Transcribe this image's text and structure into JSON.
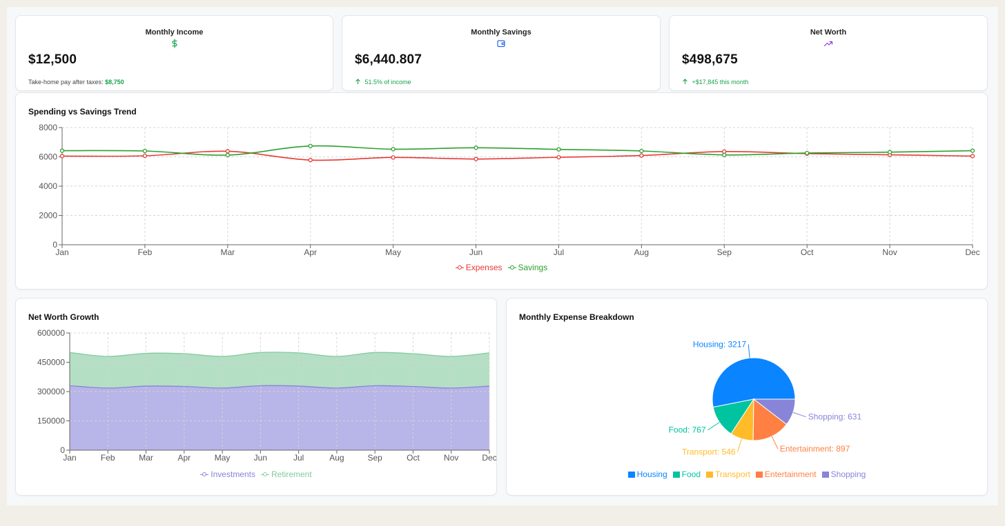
{
  "cards": [
    {
      "title": "Monthly Income",
      "icon": "dollar-icon",
      "value": "$12,500",
      "sub_text": "Take-home pay after taxes:",
      "sub_highlight": "$8,750",
      "color": "#16a34a"
    },
    {
      "title": "Monthly Savings",
      "icon": "wallet-icon",
      "value": "$6,440.807",
      "sub_text": "51.5% of income",
      "color": "#2563eb"
    },
    {
      "title": "Net Worth",
      "icon": "trending-up-icon",
      "value": "$498,675",
      "sub_text": "+$17,845 this month",
      "color": "#9333ea"
    }
  ],
  "chart_data": [
    {
      "type": "line",
      "title": "Spending vs Savings Trend",
      "categories": [
        "Jan",
        "Feb",
        "Mar",
        "Apr",
        "May",
        "Jun",
        "Jul",
        "Aug",
        "Sep",
        "Oct",
        "Nov",
        "Dec"
      ],
      "series": [
        {
          "name": "Expenses",
          "color": "#e53935",
          "values": [
            6050,
            6070,
            6380,
            5780,
            5960,
            5850,
            5970,
            6090,
            6360,
            6220,
            6140,
            6050
          ]
        },
        {
          "name": "Savings",
          "color": "#2ca02c",
          "values": [
            6420,
            6400,
            6120,
            6740,
            6520,
            6620,
            6510,
            6400,
            6130,
            6260,
            6320,
            6420
          ]
        }
      ],
      "yticks": [
        0,
        2000,
        4000,
        6000,
        8000
      ],
      "ylim": [
        0,
        8000
      ],
      "grid": true,
      "legend": "bottom"
    },
    {
      "type": "area",
      "title": "Net Worth Growth",
      "stacked": true,
      "categories": [
        "Jan",
        "Feb",
        "Mar",
        "Apr",
        "May",
        "Jun",
        "Jul",
        "Aug",
        "Sep",
        "Oct",
        "Nov",
        "Dec"
      ],
      "series": [
        {
          "name": "Investments",
          "color": "#8884d8",
          "values": [
            330000,
            318000,
            328000,
            326000,
            318000,
            330000,
            328000,
            318000,
            330000,
            326000,
            318000,
            328000
          ]
        },
        {
          "name": "Retirement",
          "color": "#82ca9d",
          "values": [
            170000,
            162000,
            168000,
            168000,
            162000,
            170000,
            170000,
            162000,
            170000,
            168000,
            162000,
            170000
          ]
        }
      ],
      "yticks": [
        0,
        150000,
        300000,
        450000,
        600000
      ],
      "ylim": [
        0,
        600000
      ],
      "grid": true,
      "legend": "bottom"
    },
    {
      "type": "pie",
      "title": "Monthly Expense Breakdown",
      "slices": [
        {
          "name": "Housing",
          "value": 3217,
          "color": "#0a84ff",
          "label": "Housing: 3217"
        },
        {
          "name": "Food",
          "value": 767,
          "color": "#00c49f",
          "label": "Food: 767"
        },
        {
          "name": "Transport",
          "value": 546,
          "color": "#ffbb28",
          "label": "Transport: 546"
        },
        {
          "name": "Entertainment",
          "value": 897,
          "color": "#ff8042",
          "label": "Entertainment: 897"
        },
        {
          "name": "Shopping",
          "value": 631,
          "color": "#8884d8",
          "label": "Shopping: 631"
        }
      ],
      "legend": "bottom"
    }
  ]
}
